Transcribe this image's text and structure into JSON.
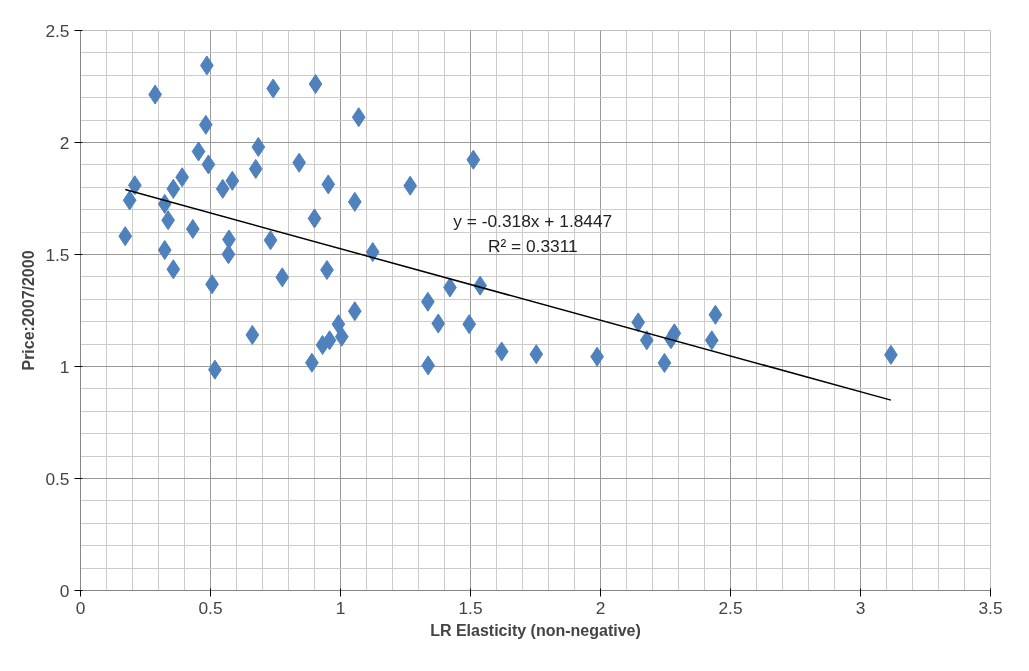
{
  "chart_data": {
    "type": "scatter",
    "xlabel": "LR Elasticity (non-negative)",
    "ylabel": "Price:2007/2000",
    "xlim": [
      0,
      3.5
    ],
    "xticks": [
      0,
      0.5,
      1,
      1.5,
      2,
      2.5,
      3,
      3.5
    ],
    "ylim": [
      0,
      2.5
    ],
    "yticks": [
      0,
      0.5,
      1,
      1.5,
      2,
      2.5
    ],
    "grid": true,
    "series": [
      {
        "color": "#4f81bd",
        "marker": "diamond",
        "x": [
          0.486,
          0.287,
          0.741,
          0.904,
          1.07,
          0.482,
          0.684,
          0.454,
          0.492,
          0.674,
          0.841,
          0.391,
          0.357,
          0.209,
          0.189,
          0.324,
          0.547,
          0.584,
          0.953,
          1.055,
          0.337,
          0.9,
          0.432,
          0.172,
          0.571,
          0.731,
          1.124,
          0.324,
          0.569,
          0.357,
          0.948,
          0.776,
          0.506,
          1.055,
          0.661,
          0.992,
          1.005,
          0.958,
          0.931,
          0.89,
          0.517,
          1.268,
          1.511,
          1.537,
          1.421,
          1.336,
          1.376,
          1.495,
          1.62,
          1.337,
          1.753,
          1.987,
          2.145,
          2.178,
          2.284,
          2.271,
          2.246,
          2.442,
          2.428,
          3.117
        ],
        "values": [
          2.344,
          2.214,
          2.241,
          2.261,
          2.113,
          2.079,
          1.98,
          1.96,
          1.902,
          1.882,
          1.91,
          1.845,
          1.793,
          1.809,
          1.742,
          1.726,
          1.793,
          1.829,
          1.813,
          1.735,
          1.653,
          1.661,
          1.614,
          1.582,
          1.567,
          1.564,
          1.511,
          1.52,
          1.501,
          1.434,
          1.431,
          1.398,
          1.367,
          1.247,
          1.141,
          1.189,
          1.133,
          1.117,
          1.096,
          1.017,
          0.986,
          1.807,
          1.923,
          1.361,
          1.353,
          1.289,
          1.192,
          1.189,
          1.067,
          1.005,
          1.055,
          1.044,
          1.197,
          1.117,
          1.148,
          1.122,
          1.016,
          1.231,
          1.117,
          1.052
        ]
      },
      {
        "type": "line",
        "color": "#000000",
        "line_style": "solid",
        "x": [
          0.172,
          3.117
        ],
        "values": [
          1.79,
          0.85
        ]
      }
    ],
    "annotations": [
      "y = -0.318x + 1.8447",
      "R² = 0.3311"
    ]
  }
}
